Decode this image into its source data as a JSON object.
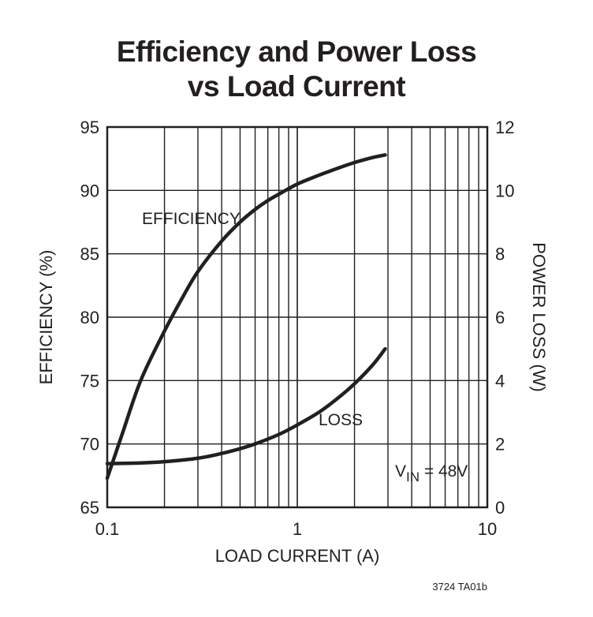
{
  "chart_data": {
    "type": "line",
    "title_line1": "Efficiency and Power Loss",
    "title_line2": "vs Load Current",
    "xlabel": "LOAD CURRENT (A)",
    "ylabel_left": "EFFICIENCY (%)",
    "ylabel_right": "POWER LOSS (W)",
    "x_scale": "log",
    "xlim": [
      0.1,
      10
    ],
    "ylim_left": [
      65,
      95
    ],
    "ylim_right": [
      0,
      12
    ],
    "x_ticks": [
      "0.1",
      "1",
      "10"
    ],
    "y_left_ticks": [
      "65",
      "70",
      "75",
      "80",
      "85",
      "90",
      "95"
    ],
    "y_right_ticks": [
      "0",
      "2",
      "4",
      "6",
      "8",
      "10",
      "12"
    ],
    "grid": true,
    "annotation": {
      "v": "V",
      "sub": "IN",
      "rest": " = 48V"
    },
    "series": [
      {
        "name": "EFFICIENCY",
        "axis": "left",
        "x": [
          0.1,
          0.12,
          0.15,
          0.2,
          0.25,
          0.3,
          0.4,
          0.5,
          0.6,
          0.7,
          0.8,
          1.0,
          1.3,
          1.6,
          2.0,
          2.5,
          2.9
        ],
        "y": [
          67.3,
          70.8,
          75.0,
          78.9,
          81.6,
          83.6,
          86.0,
          87.5,
          88.5,
          89.2,
          89.7,
          90.5,
          91.2,
          91.7,
          92.2,
          92.6,
          92.8
        ]
      },
      {
        "name": "LOSS",
        "axis": "right",
        "x": [
          0.1,
          0.15,
          0.2,
          0.3,
          0.4,
          0.5,
          0.6,
          0.8,
          1.0,
          1.3,
          1.6,
          2.0,
          2.5,
          2.9
        ],
        "y": [
          1.38,
          1.4,
          1.44,
          1.55,
          1.7,
          1.85,
          2.0,
          2.3,
          2.6,
          3.0,
          3.4,
          3.9,
          4.5,
          5.0
        ]
      }
    ]
  },
  "figure_id": "3724 TA01b"
}
